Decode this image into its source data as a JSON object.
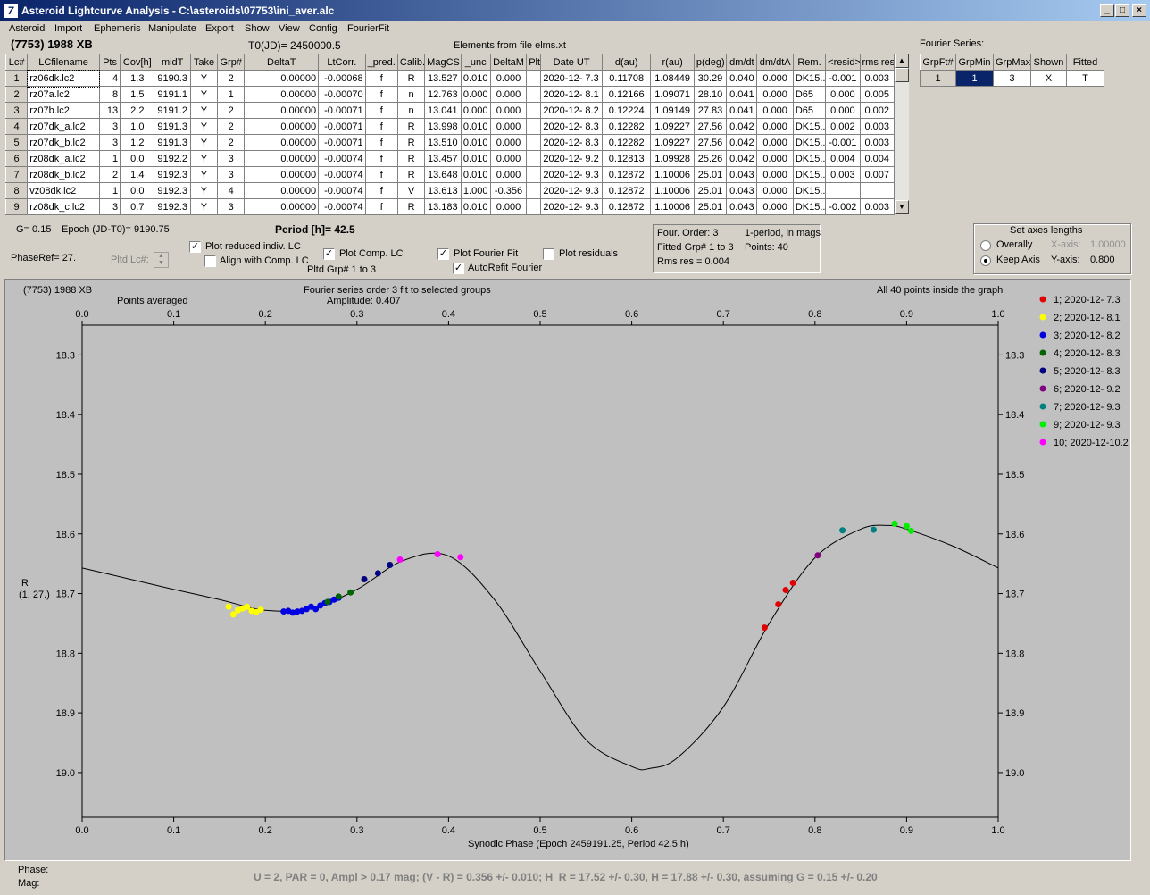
{
  "window": {
    "title": "Asteroid Lightcurve Analysis - C:\\asteroids\\07753\\ini_aver.alc",
    "icon": "7"
  },
  "menu": [
    "Asteroid",
    "Import",
    "Ephemeris",
    "Manipulate",
    "Export",
    "Show",
    "View",
    "Config",
    "FourierFit"
  ],
  "header": {
    "asteroid": "(7753) 1988 XB",
    "t0": "T0(JD)= 2450000.5",
    "elements": "Elements from file elms.xt"
  },
  "table": {
    "columns": [
      "Lc#",
      "LCfilename",
      "Pts",
      "Cov[h]",
      "midT",
      "Take",
      "Grp#",
      "DeltaT",
      "LtCorr.",
      "_pred.",
      "Calib.",
      "MagCS",
      "_unc",
      "DeltaM",
      "Plt",
      "Date UT",
      "d(au)",
      "r(au)",
      "p(deg)",
      "dm/dt",
      "dm/dtA",
      "Rem.",
      "<resid>",
      "rms res"
    ],
    "rows": [
      [
        "1",
        "rz06dk.lc2",
        "4",
        "1.3",
        "9190.3",
        "Y",
        "2",
        "0.00000",
        "-0.00068",
        "f",
        "R",
        "13.527",
        "0.010",
        "0.000",
        "",
        "2020-12- 7.3",
        "0.11708",
        "1.08449",
        "30.29",
        "0.040",
        "0.000",
        "DK15..",
        "-0.001",
        "0.003"
      ],
      [
        "2",
        "rz07a.lc2",
        "8",
        "1.5",
        "9191.1",
        "Y",
        "1",
        "0.00000",
        "-0.00070",
        "f",
        "n",
        "12.763",
        "0.000",
        "0.000",
        "",
        "2020-12- 8.1",
        "0.12166",
        "1.09071",
        "28.10",
        "0.041",
        "0.000",
        "D65",
        "0.000",
        "0.005"
      ],
      [
        "3",
        "rz07b.lc2",
        "13",
        "2.2",
        "9191.2",
        "Y",
        "2",
        "0.00000",
        "-0.00071",
        "f",
        "n",
        "13.041",
        "0.000",
        "0.000",
        "",
        "2020-12- 8.2",
        "0.12224",
        "1.09149",
        "27.83",
        "0.041",
        "0.000",
        "D65",
        "0.000",
        "0.002"
      ],
      [
        "4",
        "rz07dk_a.lc2",
        "3",
        "1.0",
        "9191.3",
        "Y",
        "2",
        "0.00000",
        "-0.00071",
        "f",
        "R",
        "13.998",
        "0.010",
        "0.000",
        "",
        "2020-12- 8.3",
        "0.12282",
        "1.09227",
        "27.56",
        "0.042",
        "0.000",
        "DK15..",
        "0.002",
        "0.003"
      ],
      [
        "5",
        "rz07dk_b.lc2",
        "3",
        "1.2",
        "9191.3",
        "Y",
        "2",
        "0.00000",
        "-0.00071",
        "f",
        "R",
        "13.510",
        "0.010",
        "0.000",
        "",
        "2020-12- 8.3",
        "0.12282",
        "1.09227",
        "27.56",
        "0.042",
        "0.000",
        "DK15..",
        "-0.001",
        "0.003"
      ],
      [
        "6",
        "rz08dk_a.lc2",
        "1",
        "0.0",
        "9192.2",
        "Y",
        "3",
        "0.00000",
        "-0.00074",
        "f",
        "R",
        "13.457",
        "0.010",
        "0.000",
        "",
        "2020-12- 9.2",
        "0.12813",
        "1.09928",
        "25.26",
        "0.042",
        "0.000",
        "DK15..",
        "0.004",
        "0.004"
      ],
      [
        "7",
        "rz08dk_b.lc2",
        "2",
        "1.4",
        "9192.3",
        "Y",
        "3",
        "0.00000",
        "-0.00074",
        "f",
        "R",
        "13.648",
        "0.010",
        "0.000",
        "",
        "2020-12- 9.3",
        "0.12872",
        "1.10006",
        "25.01",
        "0.043",
        "0.000",
        "DK15..",
        "0.003",
        "0.007"
      ],
      [
        "8",
        "vz08dk.lc2",
        "1",
        "0.0",
        "9192.3",
        "Y",
        "4",
        "0.00000",
        "-0.00074",
        "f",
        "V",
        "13.613",
        "1.000",
        "-0.356",
        "",
        "2020-12- 9.3",
        "0.12872",
        "1.10006",
        "25.01",
        "0.043",
        "0.000",
        "DK15..",
        "",
        ""
      ],
      [
        "9",
        "rz08dk_c.lc2",
        "3",
        "0.7",
        "9192.3",
        "Y",
        "3",
        "0.00000",
        "-0.00074",
        "f",
        "R",
        "13.183",
        "0.010",
        "0.000",
        "",
        "2020-12- 9.3",
        "0.12872",
        "1.10006",
        "25.01",
        "0.043",
        "0.000",
        "DK15..",
        "-0.002",
        "0.003"
      ]
    ]
  },
  "fourier_panel": {
    "label": "Fourier Series:",
    "columns": [
      "GrpFt#",
      "GrpMin",
      "GrpMax",
      "Shown",
      "Fitted"
    ],
    "row": [
      "1",
      "1",
      "3",
      "X",
      "T"
    ]
  },
  "controls": {
    "g": "G= 0.15",
    "epoch": "Epoch (JD-T0)= 9190.75",
    "period": "Period [h]= 42.5",
    "phaseref": "PhaseRef= 27.",
    "pltd_lc": "Pltd Lc#:",
    "plot_reduced": "Plot reduced indiv. LC",
    "align_comp": "Align with Comp. LC",
    "plot_comp": "Plot Comp. LC",
    "pltd_grp": "Pltd Grp#  1   to   3",
    "plot_fourier": "Plot Fourier Fit",
    "autorefit": "AutoRefit Fourier",
    "plot_residuals": "Plot residuals"
  },
  "fit_info": {
    "order": "Four. Order:  3",
    "mode": "1-period, in mags",
    "fitted": "Fitted Grp# 1 to 3",
    "points": "Points: 40",
    "rms": "Rms res      = 0.004"
  },
  "axes_box": {
    "title": "Set axes lengths",
    "overally": "Overally",
    "keep_axis": "Keep Axis",
    "xaxis_label": "X-axis:",
    "xaxis_value": "1.00000",
    "yaxis_label": "Y-axis:",
    "yaxis_value": "0.800"
  },
  "plot_labels": {
    "object": "(7753) 1988 XB",
    "points_averaged": "Points averaged",
    "fourier_title": "Fourier series order 3 fit to selected groups",
    "amplitude": "Amplitude: 0.407",
    "inside": "All 40 points inside the graph",
    "yaxis_a": "R",
    "yaxis_b": "(1, 27.)",
    "xaxis": "Synodic Phase (Epoch 2459191.25, Period 42.5 h)"
  },
  "footer": {
    "phase": "Phase:",
    "mag": "Mag:",
    "summary": "U = 2, PAR = 0, Ampl > 0.17 mag; (V - R) = 0.356 +/- 0.010; H_R = 17.52 +/- 0.30, H = 17.88 +/- 0.30, assuming G = 0.15 +/- 0.20"
  },
  "chart_data": {
    "type": "scatter",
    "xlim": [
      0.0,
      1.0
    ],
    "ylim": [
      18.25,
      19.075
    ],
    "y_inverted": true,
    "x_ticks": [
      0.0,
      0.1,
      0.2,
      0.3,
      0.4,
      0.5,
      0.6,
      0.7,
      0.8,
      0.9,
      1.0
    ],
    "y_ticks": [
      18.3,
      18.4,
      18.5,
      18.6,
      18.7,
      18.8,
      18.9,
      19.0
    ],
    "grid": false,
    "legend_position": "right",
    "series": [
      {
        "name": "1; 2020-12- 7.3",
        "color": "#e00000",
        "points": [
          [
            0.745,
            18.757
          ],
          [
            0.76,
            18.718
          ],
          [
            0.768,
            18.694
          ],
          [
            0.776,
            18.682
          ]
        ]
      },
      {
        "name": "2; 2020-12- 8.1",
        "color": "#ffff00",
        "points": [
          [
            0.16,
            18.722
          ],
          [
            0.165,
            18.735
          ],
          [
            0.17,
            18.728
          ],
          [
            0.175,
            18.725
          ],
          [
            0.18,
            18.722
          ],
          [
            0.185,
            18.729
          ],
          [
            0.19,
            18.731
          ],
          [
            0.195,
            18.727
          ]
        ]
      },
      {
        "name": "3; 2020-12- 8.2",
        "color": "#0000e0",
        "points": [
          [
            0.22,
            18.73
          ],
          [
            0.225,
            18.729
          ],
          [
            0.23,
            18.732
          ],
          [
            0.235,
            18.73
          ],
          [
            0.24,
            18.729
          ],
          [
            0.245,
            18.726
          ],
          [
            0.25,
            18.722
          ],
          [
            0.255,
            18.726
          ],
          [
            0.26,
            18.72
          ],
          [
            0.265,
            18.716
          ],
          [
            0.27,
            18.714
          ],
          [
            0.275,
            18.71
          ],
          [
            0.28,
            18.707
          ]
        ]
      },
      {
        "name": "4; 2020-12- 8.3",
        "color": "#006400",
        "points": [
          [
            0.268,
            18.714
          ],
          [
            0.28,
            18.705
          ],
          [
            0.293,
            18.698
          ]
        ]
      },
      {
        "name": "5; 2020-12- 8.3",
        "color": "#000080",
        "points": [
          [
            0.308,
            18.676
          ],
          [
            0.323,
            18.666
          ],
          [
            0.336,
            18.652
          ]
        ]
      },
      {
        "name": "6; 2020-12- 9.2",
        "color": "#800080",
        "points": [
          [
            0.803,
            18.636
          ]
        ]
      },
      {
        "name": "7; 2020-12- 9.3",
        "color": "#008080",
        "points": [
          [
            0.83,
            18.594
          ],
          [
            0.864,
            18.593
          ]
        ]
      },
      {
        "name": "9; 2020-12- 9.3",
        "color": "#00ee00",
        "points": [
          [
            0.887,
            18.583
          ],
          [
            0.9,
            18.587
          ],
          [
            0.905,
            18.595
          ]
        ]
      },
      {
        "name": "10; 2020-12-10.2",
        "color": "#ff00ff",
        "points": [
          [
            0.347,
            18.643
          ],
          [
            0.388,
            18.634
          ],
          [
            0.413,
            18.639
          ]
        ]
      }
    ],
    "fit_curve": {
      "color": "#000000",
      "x": [
        0.0,
        0.05,
        0.1,
        0.15,
        0.2,
        0.25,
        0.3,
        0.35,
        0.4,
        0.45,
        0.5,
        0.55,
        0.6,
        0.62,
        0.65,
        0.7,
        0.75,
        0.8,
        0.85,
        0.88,
        0.9,
        0.95,
        1.0
      ],
      "y": [
        18.657,
        18.675,
        18.693,
        18.71,
        18.728,
        18.725,
        18.693,
        18.645,
        18.637,
        18.71,
        18.83,
        18.945,
        18.99,
        18.993,
        18.975,
        18.89,
        18.75,
        18.64,
        18.592,
        18.586,
        18.592,
        18.62,
        18.657
      ]
    }
  }
}
